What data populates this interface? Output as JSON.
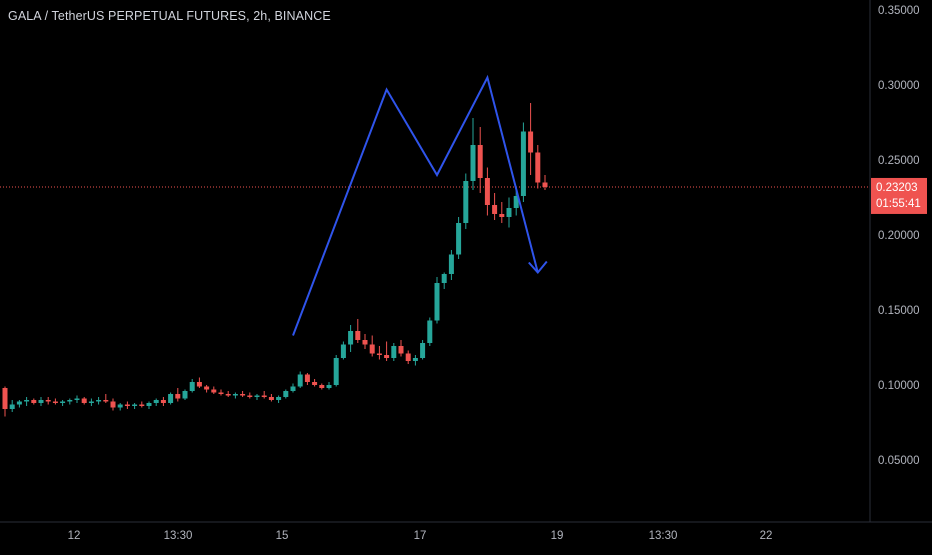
{
  "header": {
    "title": "GALA / TetherUS PERPETUAL FUTURES, 2h, BINANCE"
  },
  "colors": {
    "background": "#000000",
    "up": "#26a69a",
    "down": "#ef5350",
    "drawing": "#2f54eb",
    "price_line": "#ef5350",
    "axis_text": "#b2b5be"
  },
  "chart_data": {
    "type": "candlestick",
    "title": "GALA / TetherUS PERPETUAL FUTURES, 2h, BINANCE",
    "y_axis": {
      "ticks": [
        "0.35000",
        "0.30000",
        "0.25000",
        "0.20000",
        "0.15000",
        "0.10000",
        "0.05000"
      ],
      "range": [
        0.0,
        0.36
      ]
    },
    "x_axis": {
      "ticks": [
        "12",
        "13:30",
        "15",
        "17",
        "19",
        "13:30",
        "22"
      ]
    },
    "last_price": "0.23203",
    "countdown": "01:55:41",
    "grid": false,
    "candles": [
      [
        0.098,
        0.099,
        0.079,
        0.084
      ],
      [
        0.084,
        0.09,
        0.082,
        0.087
      ],
      [
        0.087,
        0.09,
        0.085,
        0.089
      ],
      [
        0.089,
        0.092,
        0.086,
        0.09
      ],
      [
        0.09,
        0.091,
        0.087,
        0.088
      ],
      [
        0.088,
        0.092,
        0.086,
        0.09
      ],
      [
        0.09,
        0.092,
        0.087,
        0.089
      ],
      [
        0.089,
        0.091,
        0.087,
        0.088
      ],
      [
        0.088,
        0.09,
        0.086,
        0.089
      ],
      [
        0.089,
        0.091,
        0.087,
        0.09
      ],
      [
        0.09,
        0.093,
        0.088,
        0.091
      ],
      [
        0.091,
        0.092,
        0.087,
        0.088
      ],
      [
        0.088,
        0.091,
        0.086,
        0.089
      ],
      [
        0.089,
        0.092,
        0.087,
        0.09
      ],
      [
        0.09,
        0.094,
        0.088,
        0.089
      ],
      [
        0.089,
        0.091,
        0.083,
        0.085
      ],
      [
        0.085,
        0.088,
        0.083,
        0.087
      ],
      [
        0.087,
        0.089,
        0.084,
        0.086
      ],
      [
        0.086,
        0.088,
        0.084,
        0.087
      ],
      [
        0.087,
        0.089,
        0.085,
        0.086
      ],
      [
        0.086,
        0.089,
        0.084,
        0.088
      ],
      [
        0.088,
        0.091,
        0.086,
        0.09
      ],
      [
        0.09,
        0.092,
        0.086,
        0.088
      ],
      [
        0.088,
        0.095,
        0.087,
        0.094
      ],
      [
        0.094,
        0.098,
        0.089,
        0.091
      ],
      [
        0.091,
        0.097,
        0.09,
        0.096
      ],
      [
        0.096,
        0.104,
        0.095,
        0.102
      ],
      [
        0.102,
        0.105,
        0.098,
        0.099
      ],
      [
        0.099,
        0.1,
        0.095,
        0.097
      ],
      [
        0.097,
        0.099,
        0.094,
        0.095
      ],
      [
        0.095,
        0.097,
        0.093,
        0.094
      ],
      [
        0.094,
        0.096,
        0.092,
        0.093
      ],
      [
        0.093,
        0.095,
        0.091,
        0.094
      ],
      [
        0.094,
        0.096,
        0.092,
        0.093
      ],
      [
        0.093,
        0.095,
        0.091,
        0.092
      ],
      [
        0.092,
        0.094,
        0.09,
        0.093
      ],
      [
        0.093,
        0.096,
        0.091,
        0.092
      ],
      [
        0.092,
        0.094,
        0.089,
        0.09
      ],
      [
        0.09,
        0.093,
        0.088,
        0.092
      ],
      [
        0.092,
        0.097,
        0.091,
        0.096
      ],
      [
        0.096,
        0.101,
        0.095,
        0.099
      ],
      [
        0.099,
        0.109,
        0.098,
        0.107
      ],
      [
        0.107,
        0.108,
        0.1,
        0.102
      ],
      [
        0.102,
        0.104,
        0.099,
        0.1
      ],
      [
        0.1,
        0.101,
        0.097,
        0.098
      ],
      [
        0.098,
        0.102,
        0.097,
        0.1
      ],
      [
        0.1,
        0.12,
        0.099,
        0.118
      ],
      [
        0.118,
        0.129,
        0.117,
        0.127
      ],
      [
        0.127,
        0.14,
        0.122,
        0.136
      ],
      [
        0.136,
        0.144,
        0.128,
        0.13
      ],
      [
        0.13,
        0.134,
        0.124,
        0.127
      ],
      [
        0.127,
        0.133,
        0.119,
        0.121
      ],
      [
        0.121,
        0.126,
        0.117,
        0.12
      ],
      [
        0.12,
        0.129,
        0.116,
        0.118
      ],
      [
        0.118,
        0.128,
        0.116,
        0.126
      ],
      [
        0.126,
        0.13,
        0.119,
        0.121
      ],
      [
        0.121,
        0.123,
        0.114,
        0.116
      ],
      [
        0.116,
        0.12,
        0.113,
        0.118
      ],
      [
        0.118,
        0.13,
        0.117,
        0.128
      ],
      [
        0.128,
        0.145,
        0.126,
        0.143
      ],
      [
        0.143,
        0.172,
        0.141,
        0.168
      ],
      [
        0.168,
        0.175,
        0.164,
        0.174
      ],
      [
        0.174,
        0.19,
        0.17,
        0.187
      ],
      [
        0.187,
        0.212,
        0.184,
        0.208
      ],
      [
        0.208,
        0.241,
        0.204,
        0.236
      ],
      [
        0.236,
        0.278,
        0.23,
        0.26
      ],
      [
        0.26,
        0.272,
        0.228,
        0.238
      ],
      [
        0.238,
        0.245,
        0.213,
        0.22
      ],
      [
        0.22,
        0.228,
        0.21,
        0.214
      ],
      [
        0.214,
        0.222,
        0.208,
        0.212
      ],
      [
        0.212,
        0.225,
        0.205,
        0.218
      ],
      [
        0.218,
        0.23,
        0.213,
        0.226
      ],
      [
        0.226,
        0.275,
        0.222,
        0.269
      ],
      [
        0.269,
        0.288,
        0.24,
        0.255
      ],
      [
        0.255,
        0.26,
        0.231,
        0.235
      ],
      [
        0.235,
        0.24,
        0.23,
        0.232
      ]
    ],
    "annotations": {
      "double_top_line": [
        [
          0.133,
          40
        ],
        [
          0.297,
          53
        ],
        [
          0.24,
          60
        ],
        [
          0.305,
          67
        ],
        [
          0.175,
          74
        ]
      ],
      "arrow_tip": [
        0.175,
        74
      ]
    }
  }
}
